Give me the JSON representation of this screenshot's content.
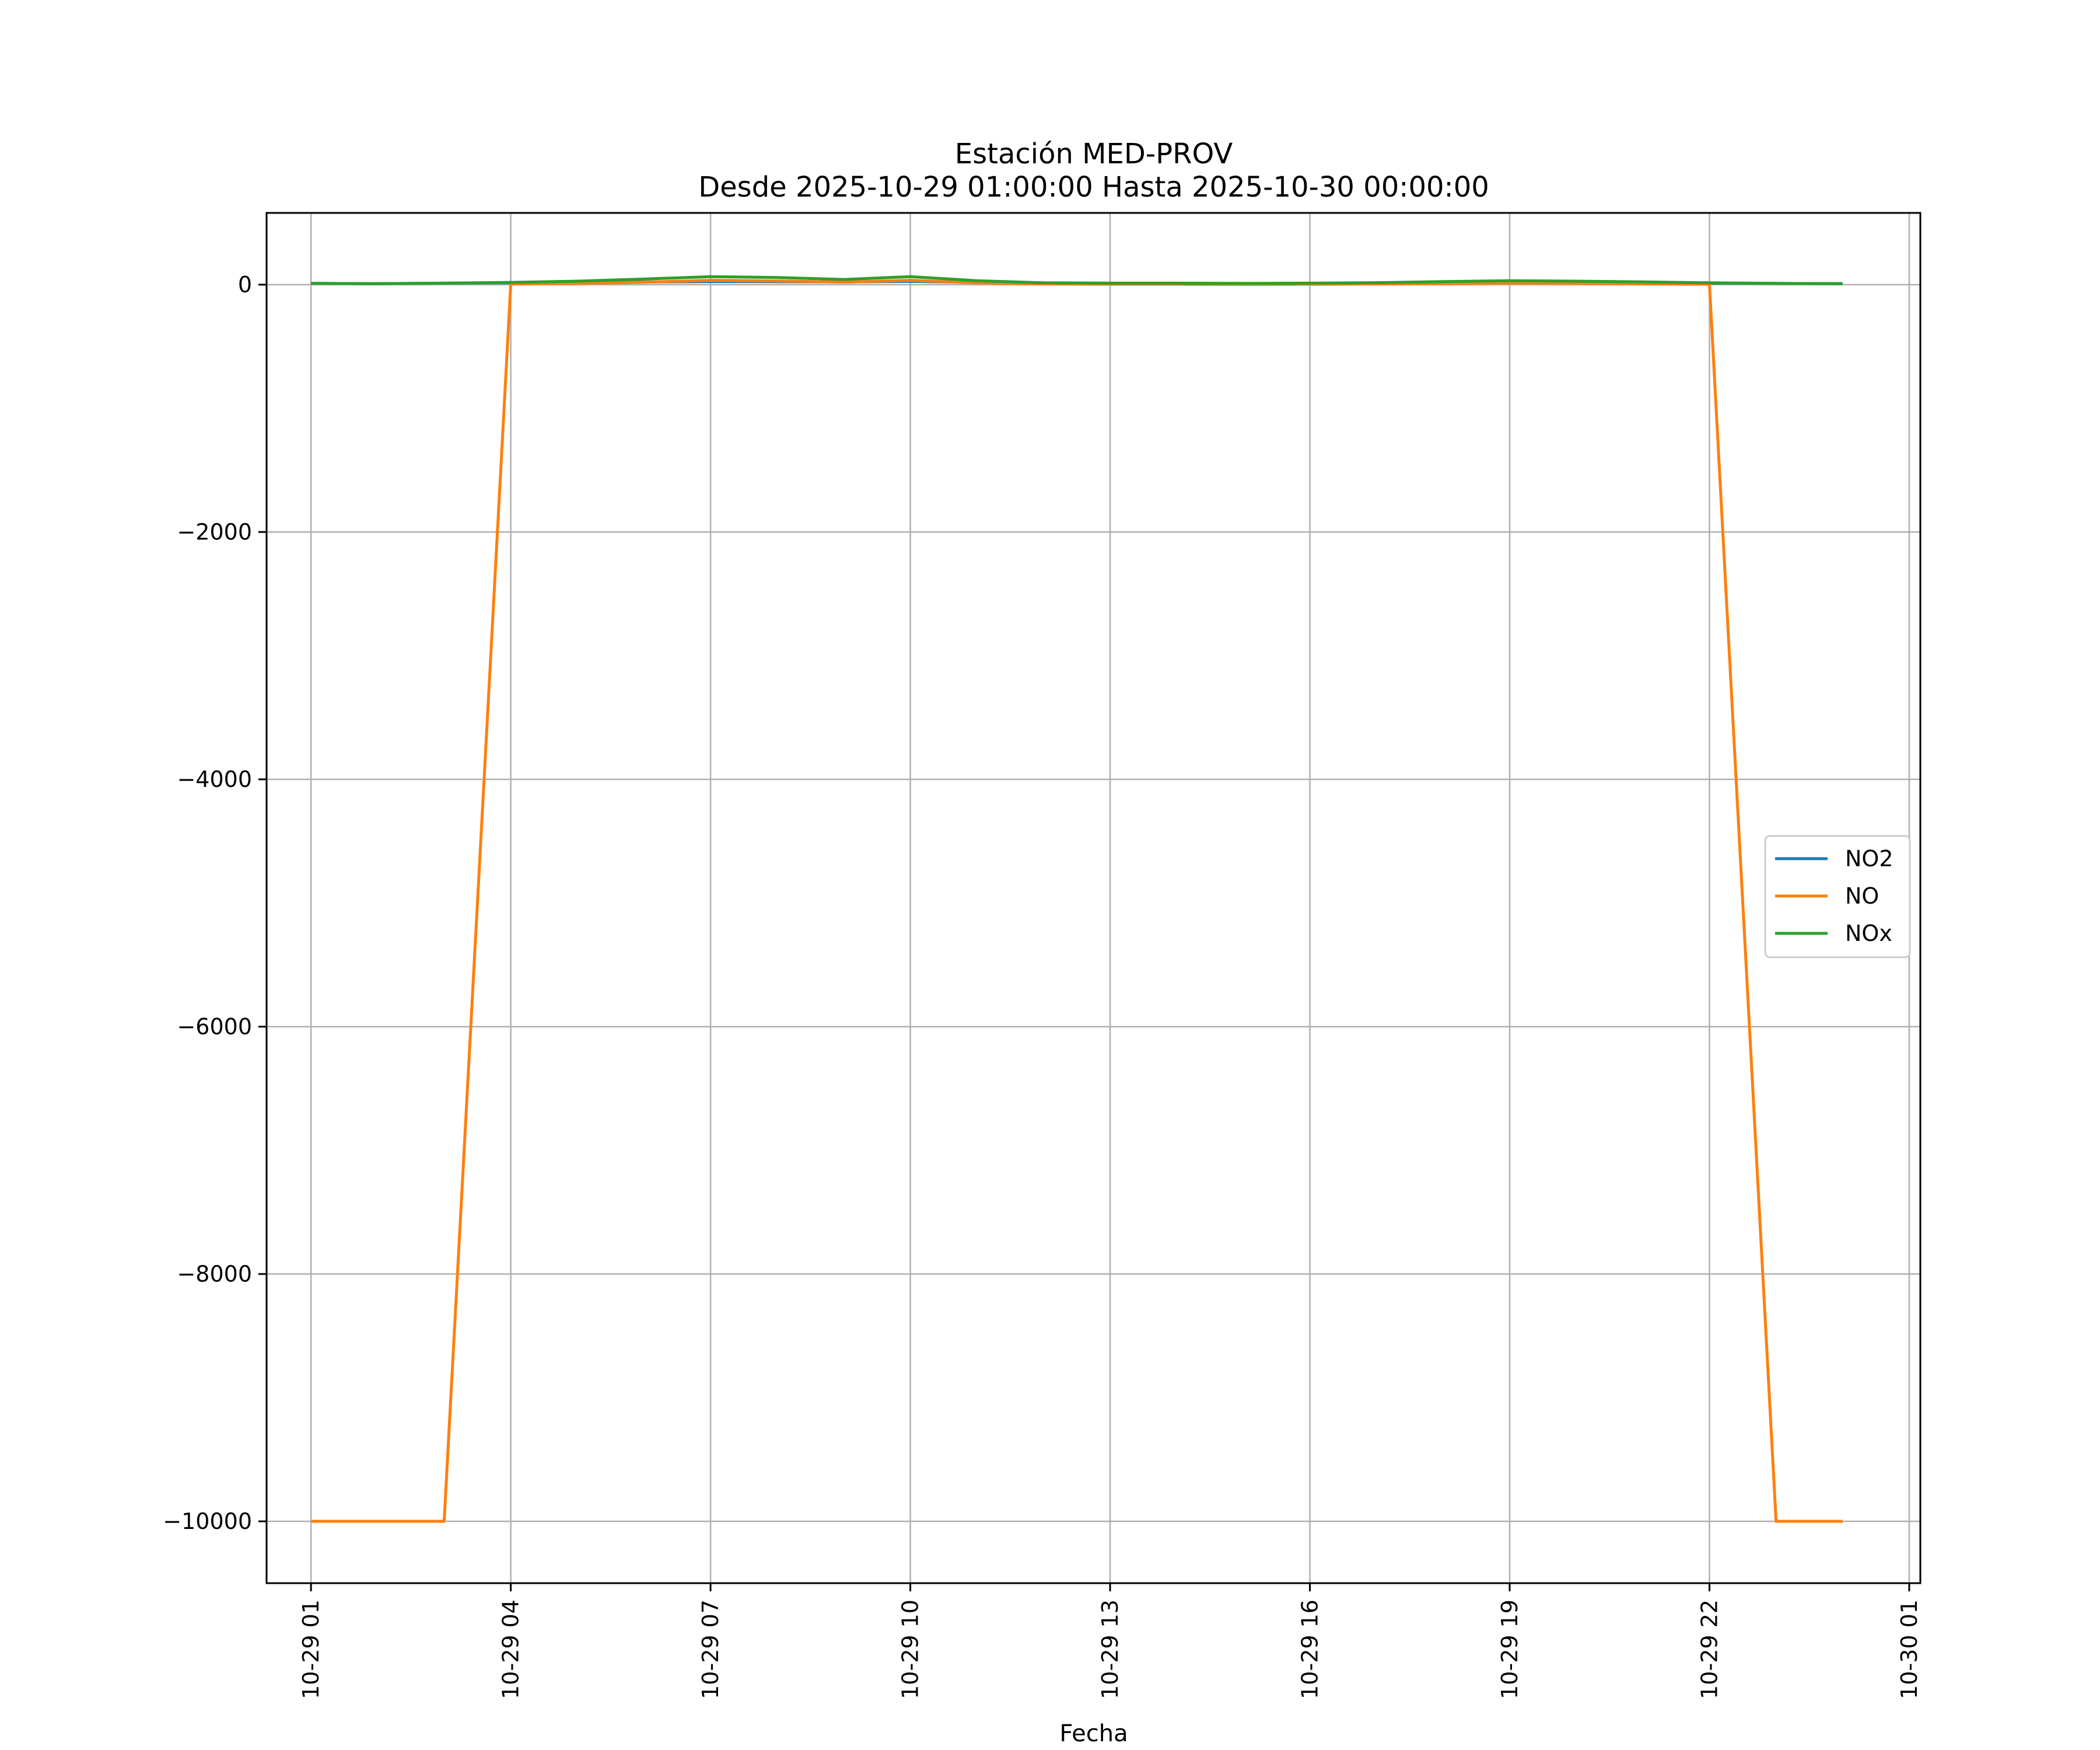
{
  "chart_data": {
    "type": "line",
    "title": "Estación MED-PROV",
    "subtitle": "Desde 2025-10-29 01:00:00 Hasta 2025-10-30 00:00:00",
    "xlabel": "Fecha",
    "ylabel": "",
    "x": [
      "2025-10-29 01:00",
      "2025-10-29 02:00",
      "2025-10-29 03:00",
      "2025-10-29 04:00",
      "2025-10-29 05:00",
      "2025-10-29 06:00",
      "2025-10-29 07:00",
      "2025-10-29 08:00",
      "2025-10-29 09:00",
      "2025-10-29 10:00",
      "2025-10-29 11:00",
      "2025-10-29 12:00",
      "2025-10-29 13:00",
      "2025-10-29 14:00",
      "2025-10-29 15:00",
      "2025-10-29 16:00",
      "2025-10-29 17:00",
      "2025-10-29 18:00",
      "2025-10-29 19:00",
      "2025-10-29 20:00",
      "2025-10-29 21:00",
      "2025-10-29 22:00",
      "2025-10-29 23:00",
      "2025-10-30 00:00"
    ],
    "xlim": [
      "2025-10-29 00:20",
      "2025-10-30 01:10"
    ],
    "xticks": [
      "2025-10-29 01:00",
      "2025-10-29 04:00",
      "2025-10-29 07:00",
      "2025-10-29 10:00",
      "2025-10-29 13:00",
      "2025-10-29 16:00",
      "2025-10-29 19:00",
      "2025-10-29 22:00",
      "2025-10-30 01:00"
    ],
    "xtick_labels": [
      "10-29 01",
      "10-29 04",
      "10-29 07",
      "10-29 10",
      "10-29 13",
      "10-29 16",
      "10-29 19",
      "10-29 22",
      "10-30 01"
    ],
    "ylim": [
      -10500,
      580
    ],
    "yticks": [
      0,
      -2000,
      -4000,
      -6000,
      -8000,
      -10000
    ],
    "ytick_labels": [
      "0",
      "−2000",
      "−4000",
      "−6000",
      "−8000",
      "−10000"
    ],
    "grid": true,
    "legend_position": "right",
    "series": [
      {
        "name": "NO2",
        "color": "#1f77b4",
        "values": [
          10,
          8,
          12,
          15,
          18,
          22,
          25,
          24,
          22,
          26,
          18,
          12,
          10,
          10,
          8,
          10,
          12,
          15,
          18,
          16,
          14,
          12,
          10,
          8
        ]
      },
      {
        "name": "NO",
        "color": "#ff7f0e",
        "values": [
          -10000,
          -10000,
          -10000,
          5,
          10,
          20,
          35,
          30,
          20,
          35,
          15,
          5,
          3,
          3,
          2,
          3,
          5,
          8,
          12,
          10,
          6,
          3,
          -10000,
          -10000
        ]
      },
      {
        "name": "NOx",
        "color": "#2ca02c",
        "values": [
          10,
          8,
          12,
          18,
          28,
          45,
          65,
          58,
          42,
          65,
          32,
          15,
          12,
          12,
          10,
          12,
          16,
          25,
          32,
          28,
          22,
          15,
          10,
          8
        ]
      }
    ]
  }
}
